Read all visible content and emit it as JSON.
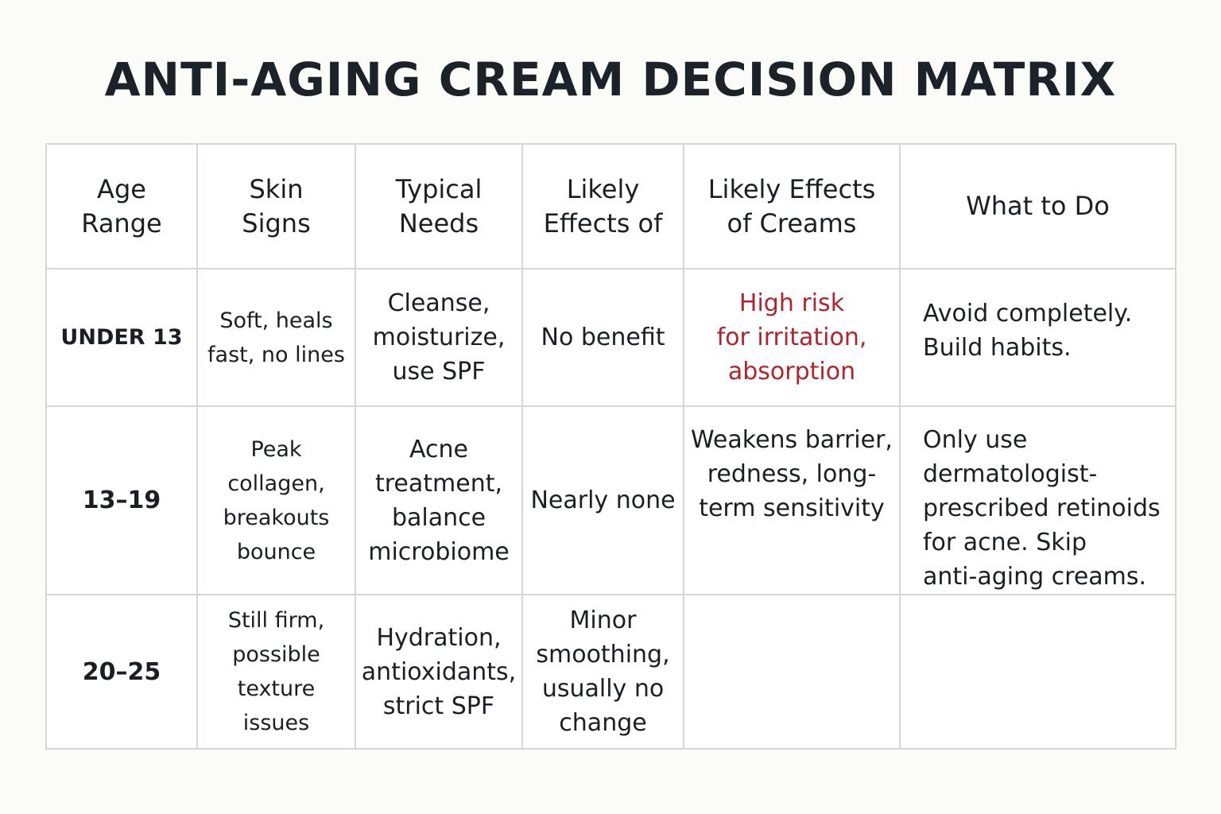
{
  "title": "ANTI-AGING CREAM DECISION MATRIX",
  "colors": {
    "background": "#fbfbf8",
    "text": "#1b1f24",
    "risk_text": "#b0252b",
    "grid_lines": "#d6d6d6"
  },
  "table": {
    "headers": [
      "Age\nRange",
      "Skin\nSigns",
      "Typical\nNeeds",
      "Likely\nEffects of",
      "Likely Effects\nof Creams",
      "What to Do"
    ],
    "rows": [
      {
        "age": "UNDER 13",
        "skin_signs": "Soft, heals\nfast, no lines",
        "typical_needs": "Cleanse,\nmoisturize,\nuse SPF",
        "likely_effects": "No benefit",
        "cream_effects": "High risk\nfor irritation,\nabsorption",
        "what_to_do": "Avoid completely.\nBuild habits."
      },
      {
        "age": "13–19",
        "skin_signs": "Peak collagen,\nbreakouts\nbounce",
        "typical_needs": "Acne\ntreatment,\nbalance\nmicrobiome",
        "likely_effects": "Nearly none",
        "cream_effects": "Weakens barrier,\nredness, long-\nterm sensitivity",
        "what_to_do": "Only use\ndermatologist-\nprescribed retinoids\nfor acne. Skip\nanti-aging creams."
      },
      {
        "age": "20–25",
        "skin_signs": "Still firm,\npossible\ntexture issues",
        "typical_needs": "Hydration,\nantioxidants,\nstrict SPF",
        "likely_effects": "Minor\nsmoothing,\nusually no\nchange",
        "cream_effects": "",
        "what_to_do": ""
      }
    ]
  }
}
